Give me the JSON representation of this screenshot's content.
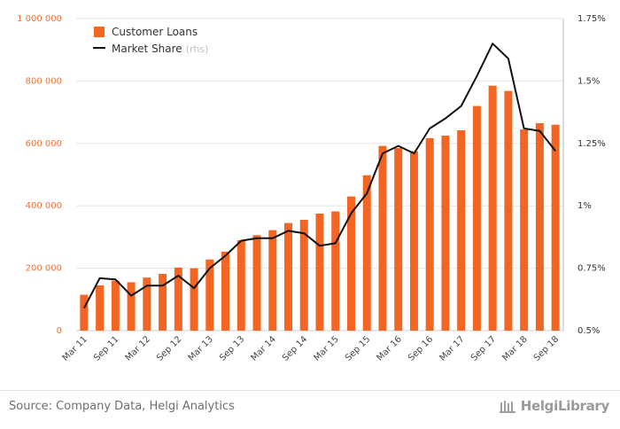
{
  "chart_data": {
    "type": "bar",
    "categories": [
      "Mar 11",
      "Jun 11",
      "Sep 11",
      "Dec 11",
      "Mar 12",
      "Jun 12",
      "Sep 12",
      "Dec 12",
      "Mar 13",
      "Jun 13",
      "Sep 13",
      "Dec 13",
      "Mar 14",
      "Jun 14",
      "Sep 14",
      "Dec 14",
      "Mar 15",
      "Jun 15",
      "Sep 15",
      "Dec 15",
      "Mar 16",
      "Jun 16",
      "Sep 16",
      "Dec 16",
      "Mar 17",
      "Jun 17",
      "Sep 17",
      "Dec 17",
      "Mar 18",
      "Jun 18",
      "Sep 18"
    ],
    "x_tick_labels": [
      "Mar 11",
      "Sep 11",
      "Mar 12",
      "Sep 12",
      "Mar 13",
      "Sep 13",
      "Mar 14",
      "Sep 14",
      "Mar 15",
      "Sep 15",
      "Mar 16",
      "Sep 16",
      "Mar 17",
      "Sep 17",
      "Mar 18",
      "Sep 18"
    ],
    "series": [
      {
        "name": "Customer Loans",
        "type": "bar",
        "axis": "left",
        "color": "#f26522",
        "values": [
          115000,
          145000,
          160000,
          155000,
          170000,
          182000,
          202000,
          200000,
          228000,
          253000,
          290000,
          306000,
          322000,
          345000,
          355000,
          375000,
          382000,
          430000,
          498000,
          592000,
          585000,
          575000,
          617000,
          625000,
          642000,
          720000,
          785000,
          768000,
          645000,
          665000,
          660000
        ]
      },
      {
        "name": "Market Share",
        "note": "(rhs)",
        "type": "line",
        "axis": "right",
        "color": "#111111",
        "values": [
          0.0059,
          0.0071,
          0.00705,
          0.0064,
          0.0068,
          0.0068,
          0.0072,
          0.0067,
          0.0075,
          0.008,
          0.0086,
          0.0087,
          0.0087,
          0.009,
          0.0089,
          0.0084,
          0.0085,
          0.0097,
          0.0105,
          0.0121,
          0.0124,
          0.0121,
          0.0131,
          0.0135,
          0.014,
          0.0152,
          0.0165,
          0.0159,
          0.0131,
          0.013,
          0.0122
        ]
      }
    ],
    "y_left": {
      "min": 0,
      "max": 1000000,
      "ticks": [
        "0",
        "200 000",
        "400 000",
        "600 000",
        "800 000",
        "1 000 000"
      ],
      "tick_values": [
        0,
        200000,
        400000,
        600000,
        800000,
        1000000
      ]
    },
    "y_right": {
      "min": 0.005,
      "max": 0.0175,
      "ticks": [
        "0.5%",
        "0.75%",
        "1%",
        "1.25%",
        "1.5%",
        "1.75%"
      ],
      "tick_values": [
        0.005,
        0.0075,
        0.01,
        0.0125,
        0.015,
        0.0175
      ]
    },
    "grid": true,
    "legend_position": "top-left"
  },
  "footer": {
    "source": "Source: Company Data, Helgi Analytics",
    "brand": "HelgiLibrary"
  }
}
